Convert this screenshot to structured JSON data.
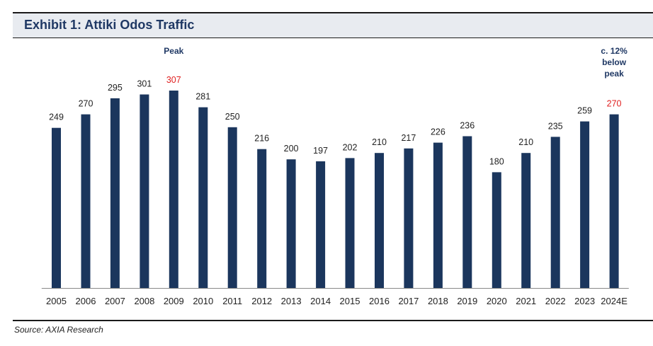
{
  "header": {
    "title": "Exhibit 1: Attiki Odos Traffic"
  },
  "footer": {
    "source": "Source: AXIA Research"
  },
  "colors": {
    "bar": "#1b365d",
    "highlight_label": "#e02020",
    "label": "#222222",
    "annotation": "#1f3864",
    "axis": "#888888"
  },
  "chart_data": {
    "type": "bar",
    "categories": [
      "2005",
      "2006",
      "2007",
      "2008",
      "2009",
      "2010",
      "2011",
      "2012",
      "2013",
      "2014",
      "2015",
      "2016",
      "2017",
      "2018",
      "2019",
      "2020",
      "2021",
      "2022",
      "2023",
      "2024E"
    ],
    "values": [
      249,
      270,
      295,
      301,
      307,
      281,
      250,
      216,
      200,
      197,
      202,
      210,
      217,
      226,
      236,
      180,
      210,
      235,
      259,
      270
    ],
    "highlighted_categories": [
      "2009",
      "2024E"
    ],
    "ylim": [
      0,
      320
    ],
    "grid": false,
    "legend": "none",
    "annotations": [
      {
        "category": "2009",
        "lines": [
          "Peak"
        ]
      },
      {
        "category": "2024E",
        "lines": [
          "c. 12%",
          "below",
          "peak"
        ]
      }
    ]
  }
}
